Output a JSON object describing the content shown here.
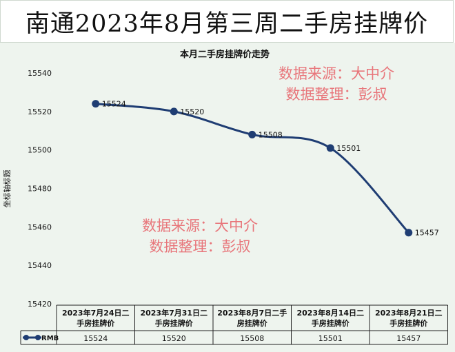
{
  "page_title": "南通2023年8月第三周二手房挂牌价",
  "watermark": {
    "line1": "数据来源：大中介",
    "line2": "数据整理：彭叔"
  },
  "chart_data": {
    "type": "line",
    "title": "本月二手房挂牌价走势",
    "ylabel": "坐标轴标题",
    "xlabel": "",
    "ylim": [
      15420,
      15540
    ],
    "yticks": [
      "15540",
      "15520",
      "15500",
      "15480",
      "15460",
      "15440",
      "15420"
    ],
    "categories": [
      [
        "2023年7月24日二",
        "手房挂牌价"
      ],
      [
        "2023年7月31日二",
        "手房挂牌价"
      ],
      [
        "2023年8月7日二手",
        "房挂牌价"
      ],
      [
        "2023年8月14日二",
        "手房挂牌价"
      ],
      [
        "2023年8月21日二",
        "手房挂牌价"
      ]
    ],
    "series": [
      {
        "name": "RMB",
        "color": "#1f3d73",
        "values": [
          15524,
          15520,
          15508,
          15501,
          15457
        ]
      }
    ],
    "grid": false,
    "legend": "bottom-left in data table"
  }
}
